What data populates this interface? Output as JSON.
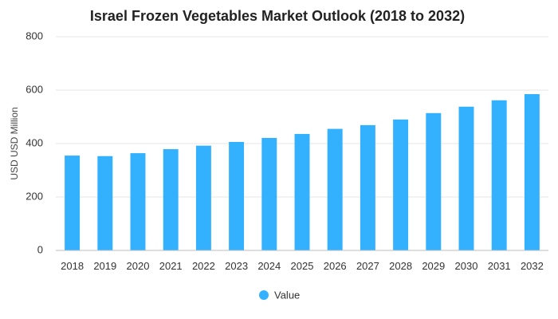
{
  "chart_data": {
    "type": "bar",
    "title": "Israel Frozen Vegetables Market Outlook (2018 to 2032)",
    "xlabel": "",
    "ylabel": "USD USD Million",
    "ylim": [
      0,
      800
    ],
    "yticks": [
      0,
      200,
      400,
      600,
      800
    ],
    "grid": true,
    "legend_position": "bottom-center",
    "categories": [
      "2018",
      "2019",
      "2020",
      "2021",
      "2022",
      "2023",
      "2024",
      "2025",
      "2026",
      "2027",
      "2028",
      "2029",
      "2030",
      "2031",
      "2032"
    ],
    "series": [
      {
        "name": "Value",
        "color": "#33b1ff",
        "values": [
          355,
          353,
          364,
          379,
          392,
          406,
          421,
          436,
          455,
          469,
          490,
          514,
          538,
          562,
          585
        ]
      }
    ]
  }
}
